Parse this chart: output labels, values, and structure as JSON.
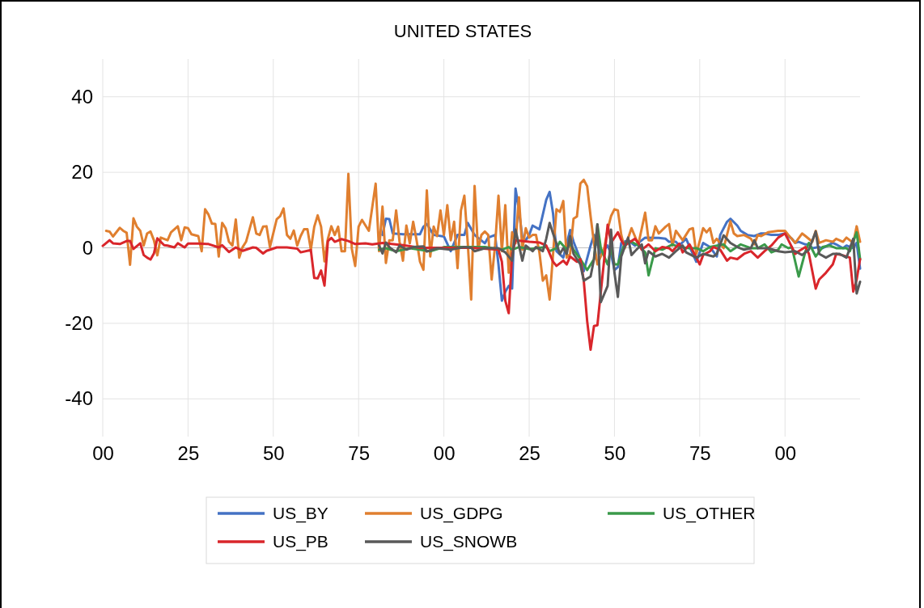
{
  "chart_data": {
    "type": "line",
    "title": "UNITED STATES",
    "xlim": [
      1800,
      2022
    ],
    "xticks": [
      {
        "value": 1800,
        "label": "00"
      },
      {
        "value": 1825,
        "label": "25"
      },
      {
        "value": 1850,
        "label": "50"
      },
      {
        "value": 1875,
        "label": "75"
      },
      {
        "value": 1900,
        "label": "00"
      },
      {
        "value": 1925,
        "label": "25"
      },
      {
        "value": 1950,
        "label": "50"
      },
      {
        "value": 1975,
        "label": "75"
      },
      {
        "value": 2000,
        "label": "00"
      }
    ],
    "ylim": [
      -50,
      50
    ],
    "yticks": [
      -40,
      -20,
      0,
      20,
      40
    ],
    "grid": true,
    "legend": "bottom",
    "marker": "none",
    "line_style": "solid",
    "series": [
      {
        "name": "US_BY",
        "color": "#4472c4",
        "x": [
          1882,
          1883,
          1884,
          1885,
          1888,
          1893,
          1894,
          1895,
          1897,
          1900,
          1902,
          1904,
          1906,
          1907,
          1909,
          1912,
          1913,
          1915,
          1916,
          1917,
          1918,
          1919,
          1920,
          1921,
          1922,
          1923,
          1924,
          1925,
          1926,
          1928,
          1930,
          1931,
          1932,
          1933,
          1935,
          1937,
          1938,
          1940,
          1941,
          1943,
          1944,
          1946,
          1948,
          1949,
          1950,
          1951,
          1952,
          1954,
          1956,
          1959,
          1963,
          1965,
          1966,
          1968,
          1969,
          1971,
          1974,
          1976,
          1978,
          1980,
          1981,
          1983,
          1984,
          1986,
          1987,
          1989,
          1991,
          1993,
          1994,
          1996,
          1998,
          2000,
          2002,
          2003,
          2004,
          2006,
          2007,
          2008,
          2010,
          2011,
          2014,
          2015,
          2017,
          2018,
          2020,
          2021,
          2022
        ],
        "values": [
          3.4,
          7.7,
          7.6,
          3.8,
          3.6,
          3.6,
          5.6,
          6.3,
          3.4,
          3,
          -0.9,
          3.4,
          3.4,
          6.6,
          3.4,
          1.2,
          2.7,
          3.4,
          -4.4,
          -14,
          -11.6,
          -10.1,
          -10.8,
          15.7,
          9.9,
          2.7,
          2,
          3.4,
          5.9,
          4.9,
          12.7,
          14.8,
          9.1,
          -0.9,
          -2.6,
          4.7,
          1.6,
          -3,
          -6.2,
          0.6,
          3.4,
          -1.6,
          0.6,
          -1.6,
          -5.9,
          -5.1,
          1.3,
          2,
          0.6,
          2.7,
          2.6,
          2.4,
          1.6,
          1.6,
          0.6,
          2.4,
          -3.7,
          1.3,
          0.2,
          -2.3,
          3.4,
          6.9,
          7.7,
          5.9,
          4.5,
          3.4,
          3.1,
          3.8,
          3.8,
          3.4,
          3.4,
          3.8,
          2.4,
          1.3,
          1.6,
          0.9,
          0.9,
          -0.1,
          0.2,
          -0.1,
          1.3,
          0.9,
          -0.1,
          0.6,
          -0.1,
          1.3,
          -5.5
        ]
      },
      {
        "name": "US_GDPG",
        "color": "#e07f2f",
        "x": [
          1801,
          1802,
          1803,
          1805,
          1806,
          1807,
          1808,
          1809,
          1810,
          1811,
          1812,
          1813,
          1814,
          1815,
          1816,
          1817,
          1819,
          1820,
          1822,
          1823,
          1824,
          1825,
          1826,
          1828,
          1829,
          1830,
          1831,
          1832,
          1833,
          1834,
          1835,
          1836,
          1837,
          1838,
          1839,
          1840,
          1841,
          1842,
          1844,
          1845,
          1846,
          1847,
          1848,
          1849,
          1851,
          1852,
          1853,
          1854,
          1855,
          1856,
          1857,
          1858,
          1859,
          1860,
          1861,
          1862,
          1863,
          1864,
          1865,
          1866,
          1867,
          1868,
          1869,
          1870,
          1871,
          1872,
          1873,
          1874,
          1875,
          1876,
          1878,
          1880,
          1881,
          1882,
          1883,
          1884,
          1885,
          1886,
          1887,
          1888,
          1889,
          1890,
          1891,
          1892,
          1893,
          1894,
          1895,
          1896,
          1897,
          1898,
          1899,
          1900,
          1901,
          1902,
          1903,
          1904,
          1905,
          1906,
          1907,
          1908,
          1909,
          1910,
          1911,
          1912,
          1913,
          1914,
          1915,
          1916,
          1917,
          1918,
          1919,
          1920,
          1921,
          1922,
          1923,
          1924,
          1925,
          1926,
          1927,
          1928,
          1929,
          1930,
          1931,
          1933,
          1934,
          1935,
          1936,
          1937,
          1938,
          1939,
          1940,
          1941,
          1942,
          1943,
          1944,
          1945,
          1947,
          1948,
          1949,
          1950,
          1951,
          1952,
          1953,
          1955,
          1957,
          1959,
          1960,
          1961,
          1962,
          1963,
          1965,
          1966,
          1967,
          1968,
          1970,
          1972,
          1973,
          1974,
          1976,
          1977,
          1978,
          1979,
          1980,
          1982,
          1984,
          1985,
          1986,
          1988,
          1990,
          1991,
          1992,
          1993,
          1995,
          1998,
          2000,
          2001,
          2003,
          2005,
          2006,
          2008,
          2009,
          2010,
          2012,
          2014,
          2015,
          2017,
          2018,
          2020,
          2021,
          2022
        ],
        "values": [
          4.5,
          4.3,
          3,
          5.3,
          4.5,
          4,
          -4.5,
          7.8,
          5.6,
          4.5,
          0.6,
          3.8,
          4.3,
          2,
          -2,
          2.7,
          2,
          4.1,
          5.7,
          2,
          5.4,
          5.2,
          3.6,
          3.1,
          -0.9,
          10.2,
          8.8,
          6.4,
          6.3,
          -2.3,
          6.6,
          5.2,
          1.6,
          0.6,
          7.5,
          -2.6,
          0.2,
          1.6,
          8.1,
          3.8,
          3.4,
          5.6,
          5.7,
          0.2,
          7.6,
          8.4,
          10.4,
          3.4,
          2.4,
          4.6,
          0.6,
          3.1,
          4.9,
          4.9,
          -0.5,
          5.6,
          8.6,
          5.6,
          -3.6,
          2.4,
          5.7,
          3.4,
          5.6,
          -0.9,
          -0.9,
          19.6,
          -0.2,
          -4.8,
          5.6,
          7.4,
          4.5,
          17,
          -0.9,
          10.9,
          -4,
          2,
          2,
          9.9,
          1.6,
          -3.4,
          5.9,
          1.2,
          6.9,
          2,
          -3.7,
          -5.8,
          15.2,
          -2.3,
          5.6,
          3.1,
          9.9,
          3.4,
          11.3,
          2,
          6.9,
          -5.4,
          9.9,
          13.8,
          1.2,
          -13.7,
          16.4,
          -0.5,
          3.4,
          4.3,
          3.4,
          -8.4,
          0.6,
          13.8,
          -0.9,
          11.3,
          -6.6,
          4.1,
          1.2,
          13.4,
          -0.5,
          5.2,
          2.7,
          3.4,
          3.4,
          -1.2,
          -8.7,
          -7.3,
          -13.7,
          10.2,
          9.5,
          12.4,
          -2.6,
          -1.6,
          7.7,
          8.3,
          17,
          18,
          16.3,
          8.4,
          1.2,
          -4.4,
          -0.1,
          4.9,
          8.4,
          10.2,
          9.9,
          3.4,
          -0.1,
          5.2,
          0.9,
          9.3,
          2,
          2,
          5.7,
          3.8,
          5.6,
          6.3,
          0.6,
          4.5,
          2,
          4.9,
          5.2,
          -1.6,
          5.2,
          4.1,
          5.2,
          1.3,
          2.4,
          -0.1,
          7,
          3.8,
          3.1,
          3.4,
          2.4,
          0.9,
          3.4,
          3.1,
          4.1,
          4.5,
          4.5,
          3.4,
          1.3,
          3.8,
          3.1,
          1.6,
          4.5,
          1.3,
          2,
          1.6,
          2.4,
          1.6,
          2.7,
          1.3,
          5.7,
          1.6
        ]
      },
      {
        "name": "US_OTHER",
        "color": "#3a9a4a",
        "x": [
          1881,
          1883,
          1886,
          1890,
          1896,
          1900,
          1908,
          1912,
          1917,
          1919,
          1920,
          1922,
          1925,
          1928,
          1930,
          1931,
          1933,
          1934,
          1936,
          1937,
          1938,
          1940,
          1942,
          1944,
          1945,
          1946,
          1948,
          1949,
          1950,
          1951,
          1953,
          1955,
          1957,
          1959,
          1960,
          1962,
          1964,
          1967,
          1969,
          1972,
          1974,
          1976,
          1978,
          1982,
          1984,
          1987,
          1990,
          1992,
          1994,
          1996,
          1998,
          1999,
          2001,
          2002,
          2004,
          2006,
          2007,
          2009,
          2011,
          2013,
          2015,
          2018,
          2019,
          2021,
          2022
        ],
        "values": [
          -0.5,
          -0.1,
          -0.9,
          -0.1,
          -0.9,
          0.2,
          0.2,
          0.2,
          -0.5,
          0.2,
          -0.5,
          0.2,
          -0.3,
          0,
          0.2,
          -0.9,
          -0.1,
          1.6,
          -0.5,
          1.2,
          -0.5,
          -3,
          -5.9,
          -3,
          6.2,
          -0.1,
          -4.4,
          -0.1,
          -4.4,
          -4.4,
          1.3,
          1.6,
          0.6,
          -1.2,
          -7.3,
          -0.1,
          -0.5,
          0.9,
          0.2,
          -0.1,
          -0.1,
          -0.9,
          0.2,
          0.9,
          -0.9,
          0.9,
          -0.1,
          -0.1,
          0.9,
          -1.2,
          -0.5,
          0.9,
          -0.1,
          0.2,
          -7.6,
          -0.9,
          1.3,
          -2.3,
          0.2,
          0.6,
          -0.1,
          -0.1,
          -0.9,
          4.1,
          -3
        ]
      },
      {
        "name": "US_PB",
        "color": "#d9262b",
        "x": [
          1800,
          1802,
          1803,
          1805,
          1807,
          1808,
          1809,
          1811,
          1812,
          1813,
          1814,
          1815,
          1816,
          1818,
          1819,
          1821,
          1822,
          1824,
          1825,
          1828,
          1831,
          1834,
          1835,
          1837,
          1839,
          1841,
          1844,
          1845,
          1847,
          1848,
          1851,
          1854,
          1857,
          1858,
          1861,
          1862,
          1863,
          1864,
          1865,
          1866,
          1867,
          1868,
          1870,
          1872,
          1874,
          1877,
          1879,
          1882,
          1888,
          1893,
          1898,
          1908,
          1916,
          1917,
          1918,
          1919,
          1920,
          1921,
          1925,
          1928,
          1930,
          1932,
          1933,
          1935,
          1936,
          1937,
          1939,
          1940,
          1941,
          1942,
          1943,
          1944,
          1945,
          1947,
          1948,
          1949,
          1951,
          1952,
          1953,
          1956,
          1957,
          1958,
          1960,
          1962,
          1964,
          1966,
          1967,
          1969,
          1970,
          1972,
          1975,
          1976,
          1978,
          1979,
          1981,
          1983,
          1984,
          1986,
          1988,
          1990,
          1992,
          1994,
          1996,
          1998,
          2000,
          2001,
          2003,
          2004,
          2006,
          2007,
          2009,
          2010,
          2012,
          2014,
          2015,
          2017,
          2019,
          2020,
          2021,
          2022
        ],
        "values": [
          0.5,
          2,
          1.2,
          1,
          1.8,
          1.8,
          -0.3,
          1.2,
          -1.9,
          -2.6,
          -3.1,
          -1.5,
          2.5,
          0.7,
          0.6,
          0.1,
          1.2,
          0.1,
          1.1,
          1.1,
          1,
          0.1,
          0.7,
          -1.1,
          0.1,
          -0.8,
          0.1,
          0,
          -1.5,
          -0.8,
          0.1,
          0.1,
          -0.2,
          -1.2,
          -0.6,
          -8,
          -8.1,
          -6,
          -10,
          1.8,
          2.6,
          1.6,
          2.3,
          1.8,
          1,
          1.2,
          0.9,
          1.3,
          0.7,
          0,
          0,
          0,
          -0.5,
          -3.7,
          -14,
          -17.3,
          -1.6,
          2,
          1.6,
          1.4,
          0.6,
          -3.7,
          -4.8,
          -3.4,
          -4.4,
          -2.3,
          -3.7,
          -3,
          -8.7,
          -19.4,
          -27,
          -20.7,
          -20.5,
          -3,
          6.1,
          1.3,
          4.1,
          2,
          0.6,
          2.4,
          1.3,
          -0.5,
          0.9,
          -0.9,
          0.2,
          -0.1,
          -0.9,
          1.1,
          -1.2,
          0.9,
          -4.4,
          -1.9,
          -0.9,
          0.2,
          -0.5,
          -3.4,
          -2.6,
          -3,
          -1.6,
          -0.9,
          -2.6,
          -0.9,
          0.6,
          2.7,
          3.8,
          2,
          -1.6,
          -0.9,
          0.2,
          -1.6,
          -10.8,
          -8.4,
          -6.6,
          -4.4,
          -1.6,
          -2,
          -2.6,
          -11.6,
          -8.4,
          -3
        ]
      },
      {
        "name": "US_SNOWB",
        "color": "#595959",
        "x": [
          1881,
          1882,
          1883,
          1884,
          1886,
          1887,
          1889,
          1891,
          1894,
          1895,
          1898,
          1902,
          1906,
          1908,
          1909,
          1912,
          1916,
          1918,
          1920,
          1921,
          1923,
          1924,
          1926,
          1927,
          1929,
          1930,
          1931,
          1932,
          1934,
          1935,
          1936,
          1937,
          1938,
          1940,
          1941,
          1943,
          1944,
          1945,
          1946,
          1948,
          1949,
          1950,
          1951,
          1952,
          1954,
          1955,
          1956,
          1958,
          1959,
          1960,
          1962,
          1964,
          1966,
          1968,
          1970,
          1971,
          1974,
          1976,
          1979,
          1980,
          1982,
          1984,
          1986,
          1988,
          1990,
          1991,
          1992,
          1995,
          1998,
          2000,
          2003,
          2005,
          2007,
          2009,
          2010,
          2012,
          2014,
          2016,
          2018,
          2020,
          2021,
          2022
        ],
        "values": [
          0.6,
          -1.5,
          1.4,
          0.2,
          -1.2,
          0.6,
          -0.5,
          0.2,
          0.4,
          -1,
          -0.1,
          -0.5,
          0.2,
          0,
          -0.9,
          -0.1,
          -0.1,
          -1.2,
          -3.4,
          4.8,
          -3.4,
          0.6,
          -0.9,
          0.2,
          -0.9,
          2.4,
          6.6,
          3.8,
          -1.6,
          -0.1,
          -1.6,
          3.1,
          -1.6,
          -4.4,
          -8.7,
          -7.6,
          -3,
          6.2,
          -14.4,
          -10.1,
          4.8,
          -6.6,
          -13,
          -2.3,
          2.7,
          -1.9,
          -0.9,
          0.9,
          -4.1,
          -0.9,
          -2.3,
          -1.6,
          -2.6,
          -0.9,
          0.6,
          -1.2,
          -2.6,
          -1.6,
          -2.3,
          -1.6,
          3.3,
          1.3,
          0.2,
          -0.5,
          -0.1,
          2,
          -0.1,
          -0.1,
          -0.9,
          -1.2,
          -0.9,
          -1.9,
          -0.5,
          4.3,
          -1.6,
          -2.6,
          -1.6,
          -1.6,
          -2.6,
          2.4,
          -12.1,
          -9
        ]
      }
    ]
  }
}
